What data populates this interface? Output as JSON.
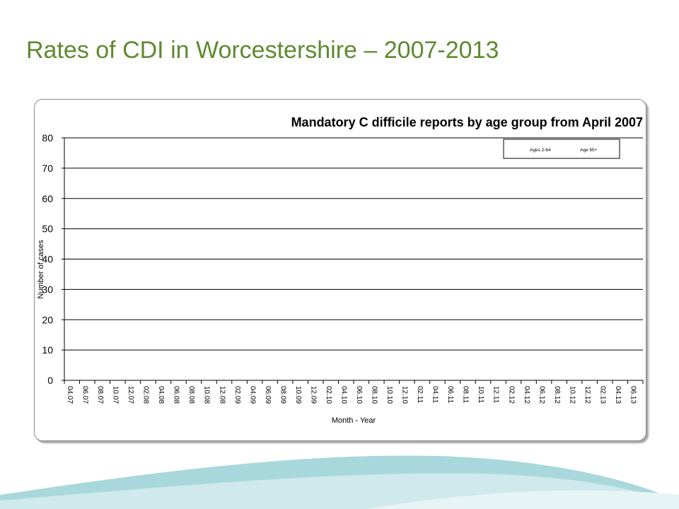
{
  "slide": {
    "title": "Rates of CDI in Worcestershire – 2007-2013",
    "title_color": "#5e8a2f",
    "wave_colors": [
      "#a8d8dc",
      "#cfe9ec",
      "#e6f4f6"
    ]
  },
  "chart_data": {
    "type": "line",
    "title": "Mandatory C difficile reports by age group from April 2007",
    "xlabel": "Month - Year",
    "ylabel": "Number of cases",
    "ylim": [
      0,
      80
    ],
    "yticks": [
      0,
      10,
      20,
      30,
      40,
      50,
      60,
      70,
      80
    ],
    "xticks": [
      "04.07",
      "06.07",
      "08.07",
      "10.07",
      "12.07",
      "02.08",
      "04.08",
      "06.08",
      "08.08",
      "10.08",
      "12.08",
      "02.09",
      "04.09",
      "06.09",
      "08.09",
      "10.09",
      "12.09",
      "02.10",
      "04.10",
      "06.10",
      "08.10",
      "10.10",
      "12.10",
      "02.11",
      "04.11",
      "06.11",
      "08.11",
      "10.11",
      "12.11",
      "02.12",
      "04.12",
      "06.12",
      "08.12",
      "10.12",
      "12.12",
      "02.13",
      "04.13",
      "06.13"
    ],
    "grid": true,
    "legend_position": "top-right",
    "series": [
      {
        "name": "Ages 2-64",
        "values": []
      },
      {
        "name": "Age 65+",
        "values": []
      }
    ]
  }
}
